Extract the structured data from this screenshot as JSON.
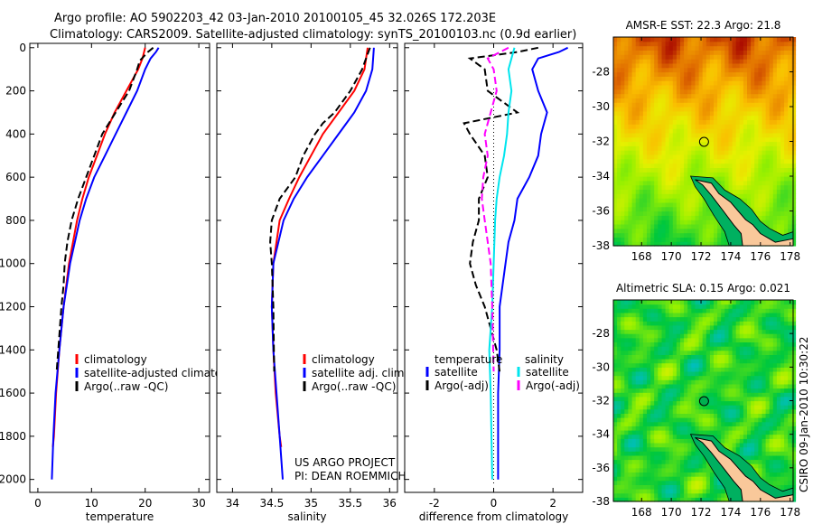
{
  "chart_data": [
    {
      "type": "line",
      "title_line1": "Argo profile: AO 5902203_42 03-Jan-2010 20100105_45 32.026S 172.203E",
      "title_line2": "Climatology: CARS2009. Satellite-adjusted climatology: synTS_20100103.nc (0.9d earlier)",
      "xlabel": "temperature",
      "ylabel": "",
      "xlim": [
        -1.5,
        32
      ],
      "ylim": [
        2060,
        -20
      ],
      "xticks": [
        0,
        10,
        20,
        30
      ],
      "yticks": [
        0,
        200,
        400,
        600,
        800,
        1000,
        1200,
        1400,
        1600,
        1800,
        2000
      ],
      "legend": [
        "climatology",
        "satellite-adjusted climatology",
        "Argo(..raw -QC)"
      ],
      "series": [
        {
          "name": "climatology",
          "color": "#ff0000",
          "style": "solid",
          "depth": [
            0,
            50,
            100,
            200,
            300,
            400,
            500,
            600,
            700,
            800,
            1000,
            1200,
            1400,
            1600,
            1800,
            1850
          ],
          "values": [
            20,
            19.5,
            18.7,
            16.5,
            14.3,
            12.5,
            11,
            9.5,
            8.3,
            7.3,
            5.8,
            4.8,
            4,
            3.4,
            3,
            2.8
          ]
        },
        {
          "name": "satellite-adjusted climatology",
          "color": "#0000ff",
          "style": "solid",
          "depth": [
            0,
            20,
            50,
            100,
            200,
            300,
            400,
            500,
            600,
            700,
            800,
            1000,
            1200,
            1400,
            1600,
            1800,
            2000
          ],
          "values": [
            22.5,
            22,
            21,
            20,
            18.5,
            16.5,
            14.5,
            12.5,
            10.5,
            9,
            7.8,
            6,
            4.8,
            4,
            3.3,
            2.9,
            2.6
          ]
        },
        {
          "name": "Argo(..raw -QC)",
          "color": "#000000",
          "style": "dashed",
          "depth": [
            0,
            20,
            60,
            100,
            200,
            300,
            400,
            500,
            600,
            700,
            800,
            900,
            1000,
            1100,
            1200,
            1400,
            1500
          ],
          "values": [
            21.5,
            20.5,
            19,
            18.5,
            17,
            14.5,
            12,
            10.5,
            9,
            7.5,
            6.3,
            5.5,
            5,
            4.8,
            4.4,
            3.8,
            3.5
          ]
        }
      ]
    },
    {
      "type": "line",
      "xlabel": "salinity",
      "xlim": [
        33.8,
        36.1
      ],
      "ylim": [
        2060,
        -20
      ],
      "xticks": [
        34,
        34.5,
        35,
        35.5,
        36
      ],
      "legend": [
        "climatology",
        "satellite adj. clim.",
        "Argo(..raw -QC)"
      ],
      "annotation": [
        "US ARGO PROJECT",
        "PI: DEAN ROEMMICH"
      ],
      "series": [
        {
          "name": "climatology",
          "color": "#ff0000",
          "style": "solid",
          "depth": [
            0,
            100,
            200,
            300,
            400,
            500,
            600,
            700,
            800,
            1000,
            1200,
            1400,
            1600,
            1800,
            1850
          ],
          "values": [
            35.72,
            35.68,
            35.55,
            35.35,
            35.15,
            35.0,
            34.85,
            34.72,
            34.6,
            34.52,
            34.5,
            34.52,
            34.55,
            34.6,
            34.62
          ]
        },
        {
          "name": "satellite adj. clim.",
          "color": "#0000ff",
          "style": "solid",
          "depth": [
            0,
            100,
            200,
            300,
            400,
            500,
            600,
            700,
            800,
            1000,
            1200,
            1400,
            1600,
            1800,
            2000
          ],
          "values": [
            35.8,
            35.78,
            35.7,
            35.55,
            35.35,
            35.15,
            34.95,
            34.78,
            34.65,
            34.52,
            34.5,
            34.52,
            34.56,
            34.6,
            34.64
          ]
        },
        {
          "name": "Argo(..raw -QC)",
          "color": "#000000",
          "style": "dashed",
          "depth": [
            0,
            50,
            100,
            200,
            300,
            350,
            400,
            500,
            600,
            700,
            800,
            900,
            1000,
            1200,
            1500
          ],
          "values": [
            35.75,
            35.7,
            35.65,
            35.5,
            35.3,
            35.15,
            35.05,
            34.9,
            34.8,
            34.6,
            34.5,
            34.48,
            34.5,
            34.52,
            34.53
          ]
        }
      ]
    },
    {
      "type": "line",
      "xlabel": "difference from climatology",
      "xlim": [
        -3,
        3
      ],
      "ylim": [
        2060,
        -20
      ],
      "xticks": [
        -2,
        0,
        2
      ],
      "legend_headers": [
        "temperature",
        "salinity"
      ],
      "legend": [
        "satellite",
        "Argo(-adj)",
        "satellite",
        "Argo(-adj)"
      ],
      "series": [
        {
          "name": "temperature satellite",
          "color": "#0000ff",
          "style": "solid",
          "depth": [
            0,
            20,
            50,
            100,
            200,
            300,
            400,
            500,
            600,
            700,
            800,
            900,
            1000,
            1200,
            1400,
            1600,
            2000
          ],
          "values": [
            2.5,
            2.2,
            1.5,
            1.3,
            1.5,
            1.8,
            1.6,
            1.5,
            1.2,
            0.8,
            0.7,
            0.5,
            0.4,
            0.2,
            0.2,
            0.15,
            0.15
          ]
        },
        {
          "name": "temperature Argo(-adj)",
          "color": "#000000",
          "style": "dashed",
          "depth": [
            0,
            20,
            50,
            100,
            200,
            300,
            350,
            400,
            500,
            600,
            700,
            800,
            900,
            1000,
            1100,
            1200,
            1400,
            1500
          ],
          "values": [
            1.5,
            0.8,
            -0.8,
            -0.3,
            -0.2,
            0.8,
            -1.0,
            -0.8,
            -0.3,
            -0.2,
            -0.5,
            -0.5,
            -0.7,
            -0.8,
            -0.6,
            -0.3,
            0.1,
            0.2
          ]
        },
        {
          "name": "salinity satellite",
          "color": "#00e5ee",
          "style": "solid",
          "depth": [
            0,
            50,
            100,
            200,
            300,
            400,
            500,
            600,
            700,
            800,
            1000,
            1200,
            1400,
            1600,
            2000
          ],
          "values": [
            0.7,
            0.6,
            0.5,
            0.6,
            0.5,
            0.45,
            0.35,
            0.2,
            0.1,
            0.05,
            0,
            -0.05,
            -0.15,
            -0.1,
            -0.05
          ]
        },
        {
          "name": "salinity Argo(-adj)",
          "color": "#ff00ff",
          "style": "dashed",
          "depth": [
            0,
            50,
            100,
            200,
            300,
            400,
            500,
            600,
            700,
            800,
            900,
            1000,
            1200,
            1500
          ],
          "values": [
            0.5,
            -0.2,
            0,
            0.1,
            -0.1,
            -0.3,
            -0.2,
            -0.35,
            -0.4,
            -0.3,
            -0.2,
            -0.1,
            -0.05,
            0
          ]
        }
      ]
    },
    {
      "type": "heatmap",
      "title": "AMSR-E SST: 22.3 Argo: 21.8",
      "xlim": [
        166.1,
        178.2
      ],
      "ylim": [
        -38,
        -26
      ],
      "xticks": [
        168,
        170,
        172,
        174,
        176,
        178
      ],
      "yticks": [
        -28,
        -30,
        -32,
        -34,
        -36,
        -38
      ],
      "marker": {
        "lon": 172.203,
        "lat": -32.026
      }
    },
    {
      "type": "heatmap",
      "title": "Altimetric SLA: 0.15 Argo: 0.021",
      "xlim": [
        166.1,
        178.2
      ],
      "ylim": [
        -38,
        -26
      ],
      "xticks": [
        168,
        170,
        172,
        174,
        176,
        178
      ],
      "yticks": [
        -28,
        -30,
        -32,
        -34,
        -36,
        -38
      ],
      "marker": {
        "lon": 172.203,
        "lat": -32.026
      }
    }
  ],
  "footer": "CSIRO 09-Jan-2010 10:30:22"
}
